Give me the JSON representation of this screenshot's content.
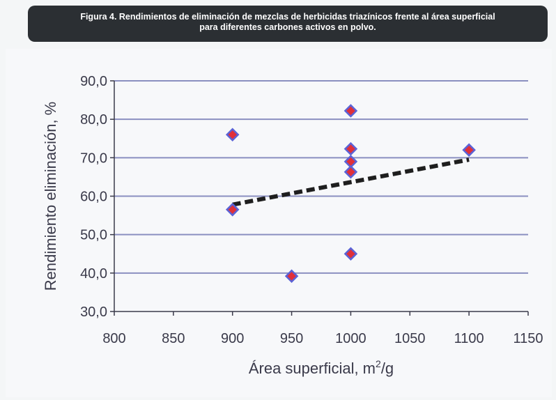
{
  "figure": {
    "title_line1": "Figura 4. Rendimientos de eliminación de mezclas de herbicidas triazínicos frente al área superficial",
    "title_line2": "para diferentes carbones activos en polvo."
  },
  "chart_data": {
    "type": "scatter",
    "title": "Figura 4. Rendimientos de eliminación de mezclas de herbicidas triazínicos frente al área superficial para diferentes carbones activos en polvo.",
    "xlabel": "Área superficial, m²/g",
    "xlabel_main": "Área superficial, m",
    "xlabel_sup": "2",
    "xlabel_tail": "/g",
    "ylabel": "Rendimiento eliminación, %",
    "xlim": [
      800,
      1150
    ],
    "ylim": [
      30,
      90
    ],
    "x_ticks": [
      "800",
      "850",
      "900",
      "950",
      "1000",
      "1050",
      "1100",
      "1150"
    ],
    "y_ticks": [
      "30,0",
      "40,0",
      "50,0",
      "60,0",
      "70,0",
      "80,0",
      "90,0"
    ],
    "grid": "horizontal",
    "points": [
      {
        "x": 900,
        "y": 76.0
      },
      {
        "x": 900,
        "y": 56.5
      },
      {
        "x": 950,
        "y": 39.2
      },
      {
        "x": 1000,
        "y": 82.2
      },
      {
        "x": 1000,
        "y": 72.3
      },
      {
        "x": 1000,
        "y": 69.0
      },
      {
        "x": 1000,
        "y": 66.3
      },
      {
        "x": 1000,
        "y": 45.0
      },
      {
        "x": 1100,
        "y": 72.0
      }
    ],
    "trendline": {
      "x": [
        900,
        1100
      ],
      "y": [
        57.8,
        69.5
      ],
      "style": "dashed"
    },
    "colors": {
      "marker_fill": "#e0303a",
      "marker_edge": "#5b63d6",
      "grid": "#8a8fc0",
      "trendline": "#1e1e1e"
    }
  }
}
